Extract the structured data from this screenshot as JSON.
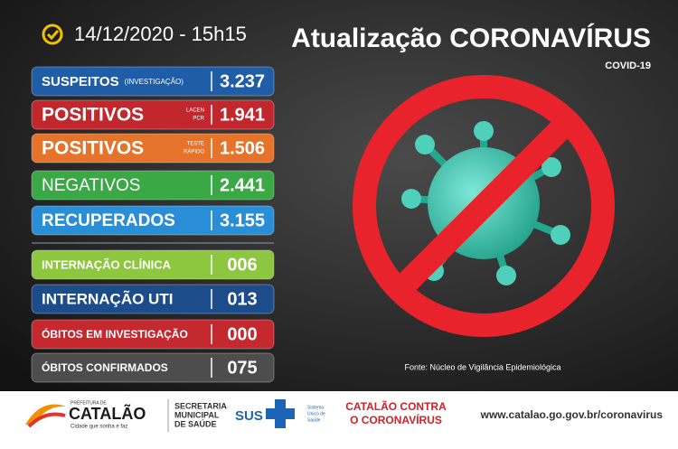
{
  "header": {
    "date": "14/12/2020 - 15h15",
    "title": "Atualização CORONAVÍRUS",
    "subtitle": "COVID-19"
  },
  "rows": [
    {
      "label": "SUSPEITOS",
      "note": [
        "(INVESTIGAÇÃO)"
      ],
      "value": "3.237",
      "color": "#1f5ea6"
    },
    {
      "label": "POSITIVOS",
      "note": [
        "LACEN",
        "PCR"
      ],
      "value": "1.941",
      "color": "#c1272d"
    },
    {
      "label": "POSITIVOS",
      "note": [
        "TESTE",
        "RÁPIDO"
      ],
      "value": "1.506",
      "color": "#e6732a"
    },
    {
      "label": "NEGATIVOS",
      "note": [],
      "value": "2.441",
      "color": "#39a845"
    },
    {
      "label": "RECUPERADOS",
      "note": [],
      "value": "3.155",
      "color": "#2a8ed6"
    },
    {
      "label": "INTERNAÇÃO CLÍNICA",
      "note": [],
      "value": "006",
      "color": "#8dc63f"
    },
    {
      "label": "INTERNAÇÃO UTI",
      "note": [],
      "value": "013",
      "color": "#1c4d8a"
    },
    {
      "label": "ÓBITOS EM INVESTIGAÇÃO",
      "note": [],
      "value": "000",
      "color": "#c4292f"
    },
    {
      "label": "ÓBITOS CONFIRMADOS",
      "note": [],
      "value": "075",
      "color": "#4d4d4d"
    }
  ],
  "source": "Fonte: Núcleo de Vigilância Epidemiológica",
  "footer": {
    "prefeitura": "PREFEITURA DE",
    "city": "CATALÃO",
    "slogan": "Cidade que sonha e faz",
    "secretaria": [
      "SECRETARIA",
      "MUNICIPAL",
      "DE SAÚDE"
    ],
    "sus": "SUS",
    "sus_text": [
      "Sistema",
      "Único de",
      "Saúde"
    ],
    "campaign": [
      "CATALÃO CONTRA",
      "O CORONAVÍRUS"
    ],
    "url": "www.catalao.go.gov.br/coronavirus"
  }
}
